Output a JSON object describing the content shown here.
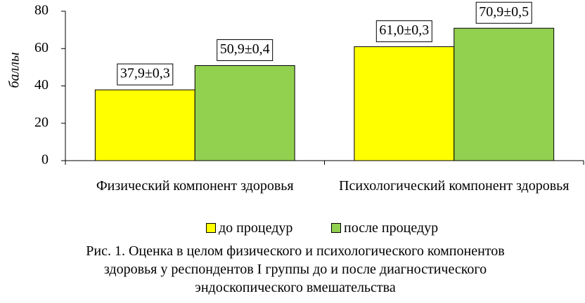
{
  "chart_data": {
    "type": "bar",
    "title": "Рис. 1. Оценка в целом физического и психологического компонентов здоровья у респондентов I группы до и после диагностического эндоскопического вмешательства",
    "y_label": "баллы",
    "categories": [
      "Физический компонент здоровья",
      "Психологический компонент здоровья"
    ],
    "series": [
      {
        "name": "до процедур",
        "color": "#ffff00",
        "values": [
          37.9,
          61.0
        ],
        "value_labels": [
          "37,9±0,3",
          "61,0±0,3"
        ]
      },
      {
        "name": "после процедур",
        "color": "#92d050",
        "values": [
          50.9,
          70.9
        ],
        "value_labels": [
          "50,9±0,4",
          "70,9±0,5"
        ]
      }
    ],
    "ylim": [
      0,
      80
    ],
    "yticks": [
      0,
      20,
      40,
      60,
      80
    ],
    "grid": false,
    "legend": "bottom"
  }
}
